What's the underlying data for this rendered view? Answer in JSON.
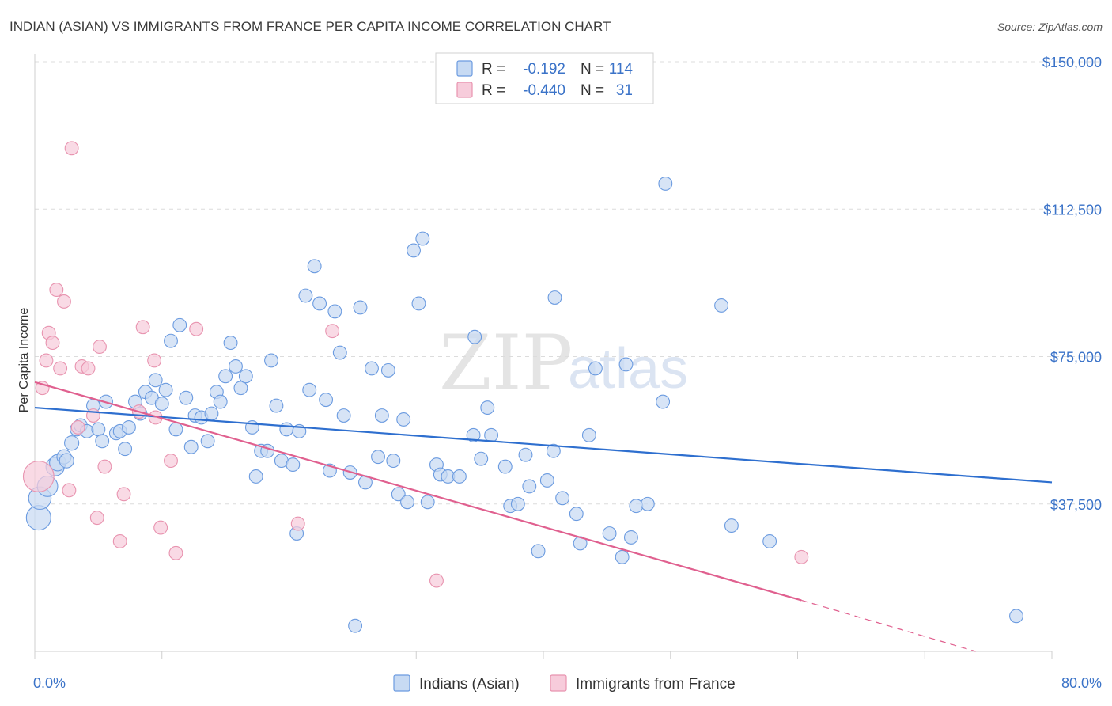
{
  "chart_data": {
    "type": "scatter",
    "title": "INDIAN (ASIAN) VS IMMIGRANTS FROM FRANCE PER CAPITA INCOME CORRELATION CHART",
    "source": "Source: ZipAtlas.com",
    "ylabel": "Per Capita Income",
    "xlabel": "",
    "xlim": [
      0,
      80
    ],
    "ylim": [
      0,
      155000
    ],
    "x_tick_labels": [
      "0.0%",
      "80.0%"
    ],
    "y_ticks": [
      {
        "value": 150000,
        "label": "$150,000"
      },
      {
        "value": 112500,
        "label": "$112,500"
      },
      {
        "value": 75000,
        "label": "$75,000"
      },
      {
        "value": 37500,
        "label": "$37,500"
      }
    ],
    "watermark": {
      "zip": "ZIP",
      "atlas": "atlas"
    },
    "legend": {
      "r_label": "R =",
      "n_label": "N =",
      "entries": [
        {
          "r": "-0.192",
          "n": "114"
        },
        {
          "r": "-0.440",
          "n": "31"
        }
      ]
    },
    "series": [
      {
        "name": "Indians (Asian)",
        "color": "#6b9be0",
        "fill": "#c7daf3",
        "line_color": "#2e6fcf",
        "trend": {
          "x0": 0,
          "y0": 62000,
          "x1": 80,
          "y1": 43000
        },
        "points": [
          [
            0.3,
            34000,
            24
          ],
          [
            0.4,
            39000,
            22
          ],
          [
            1.0,
            42000,
            20
          ],
          [
            1.6,
            47000,
            18
          ],
          [
            1.8,
            48000,
            16
          ],
          [
            2.3,
            49500,
            14
          ],
          [
            2.5,
            48500,
            14
          ],
          [
            2.9,
            53000,
            14
          ],
          [
            3.3,
            56500,
            13
          ],
          [
            3.6,
            57500,
            13
          ],
          [
            4.1,
            56000,
            13
          ],
          [
            4.6,
            62500,
            13
          ],
          [
            5.0,
            56500,
            13
          ],
          [
            5.3,
            53500,
            13
          ],
          [
            5.6,
            63500,
            13
          ],
          [
            6.4,
            55500,
            13
          ],
          [
            6.7,
            56000,
            13
          ],
          [
            7.1,
            51500,
            13
          ],
          [
            7.4,
            57000,
            13
          ],
          [
            7.9,
            63500,
            13
          ],
          [
            8.3,
            60500,
            13
          ],
          [
            8.7,
            66000,
            13
          ],
          [
            9.2,
            64500,
            13
          ],
          [
            9.5,
            69000,
            13
          ],
          [
            10.0,
            63000,
            13
          ],
          [
            10.3,
            66500,
            13
          ],
          [
            10.7,
            79000,
            13
          ],
          [
            11.1,
            56500,
            13
          ],
          [
            11.4,
            83000,
            13
          ],
          [
            11.9,
            64500,
            13
          ],
          [
            12.3,
            52000,
            13
          ],
          [
            12.6,
            60000,
            13
          ],
          [
            13.1,
            59500,
            13
          ],
          [
            13.6,
            53500,
            13
          ],
          [
            13.9,
            60500,
            13
          ],
          [
            14.3,
            66000,
            13
          ],
          [
            14.6,
            63500,
            13
          ],
          [
            15.0,
            70000,
            13
          ],
          [
            15.4,
            78500,
            13
          ],
          [
            15.8,
            72500,
            13
          ],
          [
            16.2,
            67000,
            13
          ],
          [
            16.6,
            70000,
            13
          ],
          [
            17.1,
            57000,
            13
          ],
          [
            17.4,
            44500,
            13
          ],
          [
            17.8,
            51000,
            13
          ],
          [
            18.3,
            51000,
            13
          ],
          [
            18.6,
            74000,
            13
          ],
          [
            19.0,
            62500,
            13
          ],
          [
            19.4,
            48500,
            13
          ],
          [
            19.8,
            56500,
            13
          ],
          [
            20.3,
            47500,
            13
          ],
          [
            20.6,
            30000,
            13
          ],
          [
            20.8,
            56000,
            13
          ],
          [
            21.3,
            90500,
            13
          ],
          [
            21.6,
            66500,
            13
          ],
          [
            22.0,
            98000,
            13
          ],
          [
            22.4,
            88500,
            13
          ],
          [
            22.9,
            64000,
            13
          ],
          [
            23.2,
            46000,
            13
          ],
          [
            23.6,
            86500,
            13
          ],
          [
            24.0,
            76000,
            13
          ],
          [
            24.3,
            60000,
            13
          ],
          [
            24.8,
            45500,
            13
          ],
          [
            25.2,
            6500,
            13
          ],
          [
            25.6,
            87500,
            13
          ],
          [
            26.0,
            43000,
            13
          ],
          [
            26.5,
            72000,
            13
          ],
          [
            27.0,
            49500,
            13
          ],
          [
            27.3,
            60000,
            13
          ],
          [
            27.8,
            71500,
            13
          ],
          [
            28.2,
            48500,
            13
          ],
          [
            28.6,
            40000,
            13
          ],
          [
            29.0,
            59000,
            13
          ],
          [
            29.3,
            38000,
            13
          ],
          [
            29.8,
            102000,
            13
          ],
          [
            30.2,
            88500,
            13
          ],
          [
            30.5,
            105000,
            13
          ],
          [
            30.9,
            38000,
            13
          ],
          [
            31.6,
            47500,
            13
          ],
          [
            31.9,
            45000,
            13
          ],
          [
            32.5,
            44500,
            13
          ],
          [
            33.4,
            44500,
            13
          ],
          [
            34.5,
            55000,
            13
          ],
          [
            34.6,
            80000,
            13
          ],
          [
            35.6,
            62000,
            13
          ],
          [
            35.9,
            55000,
            13
          ],
          [
            35.1,
            49000,
            13
          ],
          [
            37.0,
            47000,
            13
          ],
          [
            37.4,
            37000,
            13
          ],
          [
            38.0,
            37500,
            13
          ],
          [
            38.6,
            50000,
            13
          ],
          [
            38.9,
            42000,
            13
          ],
          [
            39.6,
            25500,
            13
          ],
          [
            40.3,
            43500,
            13
          ],
          [
            40.8,
            51000,
            13
          ],
          [
            40.9,
            90000,
            13
          ],
          [
            41.5,
            39000,
            13
          ],
          [
            42.6,
            35000,
            13
          ],
          [
            42.9,
            27500,
            13
          ],
          [
            43.6,
            55000,
            13
          ],
          [
            44.1,
            72000,
            13
          ],
          [
            45.2,
            30000,
            13
          ],
          [
            46.2,
            24000,
            13
          ],
          [
            46.5,
            73000,
            13
          ],
          [
            46.9,
            29000,
            13
          ],
          [
            47.3,
            37000,
            13
          ],
          [
            48.2,
            37500,
            13
          ],
          [
            49.4,
            63500,
            13
          ],
          [
            49.6,
            119000,
            13
          ],
          [
            54.0,
            88000,
            13
          ],
          [
            54.8,
            32000,
            13
          ],
          [
            57.8,
            28000,
            13
          ],
          [
            77.2,
            9000,
            13
          ]
        ]
      },
      {
        "name": "Immigrants from France",
        "color": "#e893af",
        "fill": "#f7ccdb",
        "line_color": "#e0608f",
        "trend": {
          "x0": 0,
          "y0": 68500,
          "x1": 60.3,
          "y1": 13000
        },
        "trend_dashed": {
          "x0": 60.3,
          "y0": 13000,
          "x1": 74,
          "y1": 0
        },
        "points": [
          [
            0.3,
            44500,
            30
          ],
          [
            0.6,
            67000,
            13
          ],
          [
            0.9,
            74000,
            13
          ],
          [
            1.1,
            81000,
            13
          ],
          [
            1.4,
            78500,
            13
          ],
          [
            1.7,
            92000,
            13
          ],
          [
            2.0,
            72000,
            13
          ],
          [
            2.3,
            89000,
            13
          ],
          [
            2.7,
            41000,
            13
          ],
          [
            2.9,
            128000,
            13
          ],
          [
            3.4,
            57000,
            13
          ],
          [
            3.7,
            72500,
            13
          ],
          [
            4.2,
            72000,
            13
          ],
          [
            4.6,
            60000,
            13
          ],
          [
            4.9,
            34000,
            13
          ],
          [
            5.1,
            77500,
            13
          ],
          [
            5.5,
            47000,
            13
          ],
          [
            6.7,
            28000,
            13
          ],
          [
            7.0,
            40000,
            13
          ],
          [
            8.2,
            61000,
            13
          ],
          [
            8.5,
            82500,
            13
          ],
          [
            9.4,
            74000,
            13
          ],
          [
            9.5,
            59500,
            13
          ],
          [
            9.9,
            31500,
            13
          ],
          [
            10.7,
            48500,
            13
          ],
          [
            11.1,
            25000,
            13
          ],
          [
            12.7,
            82000,
            13
          ],
          [
            20.7,
            32500,
            13
          ],
          [
            23.4,
            81500,
            13
          ],
          [
            31.6,
            18000,
            13
          ],
          [
            60.3,
            24000,
            13
          ]
        ]
      }
    ]
  }
}
